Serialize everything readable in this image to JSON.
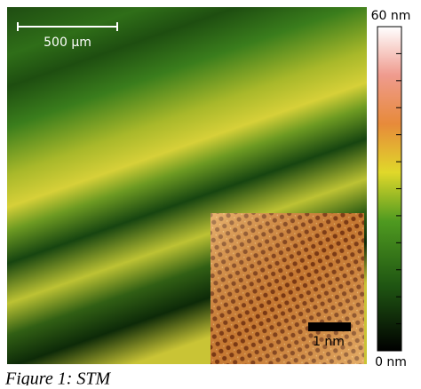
{
  "figure": {
    "scale_bar_label": "500 µm",
    "inset_scale_bar_label": "1 nm",
    "caption": "Figure 1: STM",
    "colorbar": {
      "lim": [
        0,
        60
      ],
      "ticks": [
        {
          "value": 0,
          "label": "0 nm"
        },
        {
          "value": 60,
          "label": "60 nm"
        }
      ],
      "minor_ticks": [
        5,
        10,
        15,
        20,
        25,
        30,
        35,
        40,
        45,
        50,
        55
      ]
    }
  }
}
